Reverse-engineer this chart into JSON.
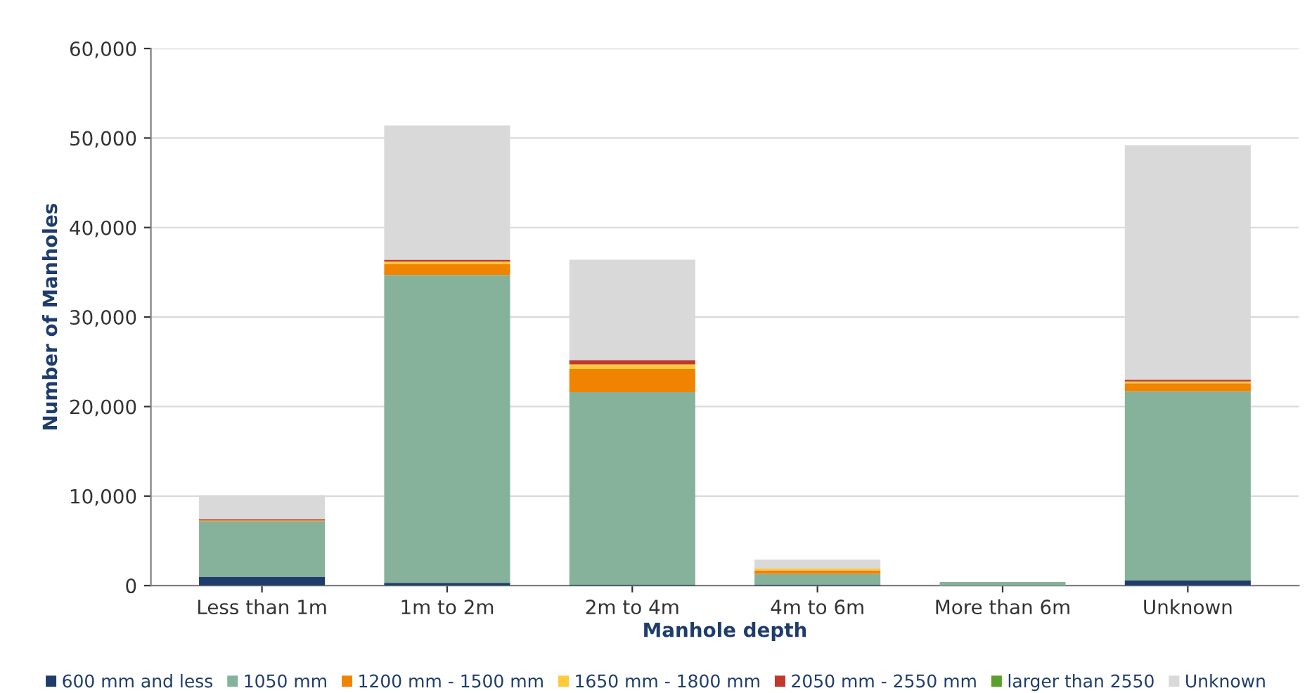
{
  "chart_data": {
    "type": "bar",
    "stacked": true,
    "xlabel": "Manhole depth",
    "ylabel": "Number of Manholes",
    "categories": [
      "Less than 1m",
      "1m to 2m",
      "2m to 4m",
      "4m to 6m",
      "More than 6m",
      "Unknown"
    ],
    "series": [
      {
        "name": "600 mm and less",
        "color": "#1f3d6b",
        "values": [
          1000,
          300,
          100,
          100,
          0,
          600
        ]
      },
      {
        "name": "1050 mm",
        "color": "#86b29b",
        "values": [
          6200,
          34400,
          21500,
          1200,
          400,
          21100
        ]
      },
      {
        "name": "1200 mm - 1500 mm",
        "color": "#f08300",
        "values": [
          100,
          1200,
          2600,
          400,
          0,
          900
        ]
      },
      {
        "name": "1650 mm - 1800 mm",
        "color": "#ffc93c",
        "values": [
          0,
          300,
          500,
          200,
          0,
          200
        ]
      },
      {
        "name": "2050 mm - 2550 mm",
        "color": "#c0392b",
        "values": [
          100,
          200,
          500,
          0,
          0,
          200
        ]
      },
      {
        "name": "larger than 2550",
        "color": "#5aa02c",
        "values": [
          0,
          0,
          0,
          0,
          0,
          0
        ]
      },
      {
        "name": "Unknown",
        "color": "#d9d9d9",
        "values": [
          2700,
          15000,
          11200,
          1000,
          0,
          26200
        ]
      }
    ],
    "ylim": [
      0,
      60000
    ],
    "yticks": [
      {
        "value": 0,
        "label": "0"
      },
      {
        "value": 10000,
        "label": "10,000"
      },
      {
        "value": 20000,
        "label": "20,000"
      },
      {
        "value": 30000,
        "label": "30,000"
      },
      {
        "value": 40000,
        "label": "40,000"
      },
      {
        "value": 50000,
        "label": "50,000"
      },
      {
        "value": 60000,
        "label": "60,000"
      }
    ],
    "grid": "y",
    "legend": "bottom"
  }
}
